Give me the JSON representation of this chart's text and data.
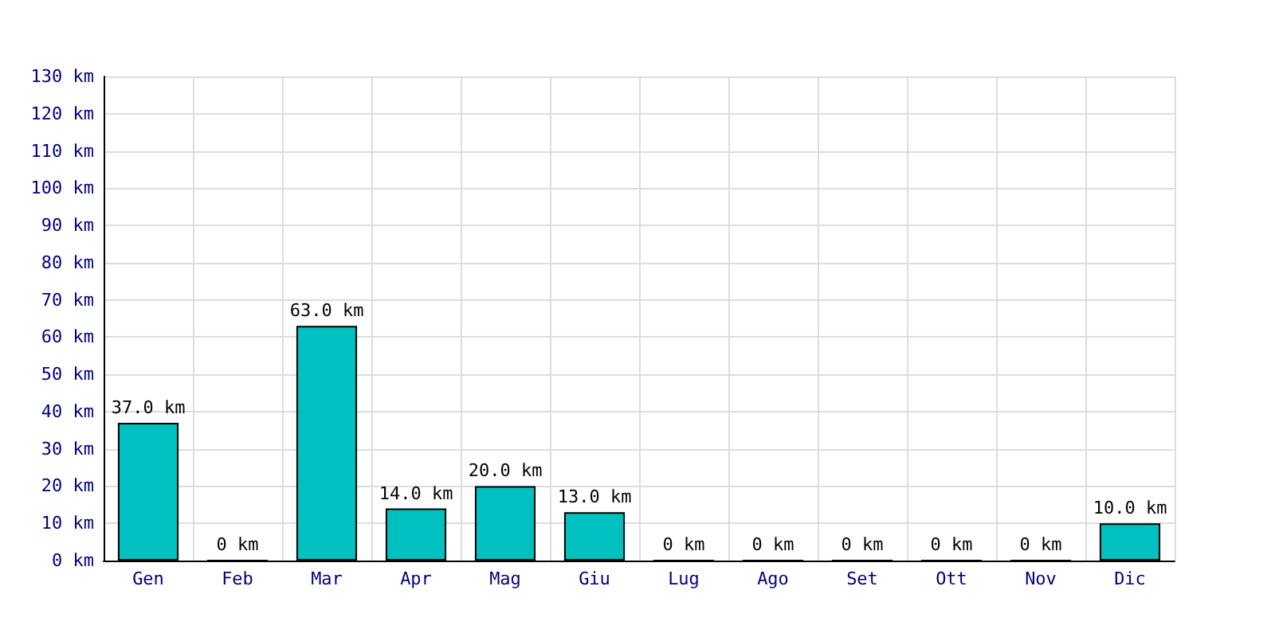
{
  "chart_data": {
    "type": "bar",
    "categories": [
      "Gen",
      "Feb",
      "Mar",
      "Apr",
      "Mag",
      "Giu",
      "Lug",
      "Ago",
      "Set",
      "Ott",
      "Nov",
      "Dic"
    ],
    "values": [
      37,
      0,
      63,
      14,
      20,
      13,
      0,
      0,
      0,
      0,
      0,
      10
    ],
    "value_labels": [
      "37.0 km",
      "0 km",
      "63.0 km",
      "14.0 km",
      "20.0 km",
      "13.0 km",
      "0 km",
      "0 km",
      "0 km",
      "0 km",
      "0 km",
      "10.0 km"
    ],
    "color": "#00c0c0",
    "ylim": [
      0,
      130
    ],
    "yticks": [
      {
        "value": 0,
        "label": "0 km"
      },
      {
        "value": 10,
        "label": "10 km"
      },
      {
        "value": 20,
        "label": "20 km"
      },
      {
        "value": 30,
        "label": "30 km"
      },
      {
        "value": 40,
        "label": "40 km"
      },
      {
        "value": 50,
        "label": "50 km"
      },
      {
        "value": 60,
        "label": "60 km"
      },
      {
        "value": 70,
        "label": "70 km"
      },
      {
        "value": 80,
        "label": "80 km"
      },
      {
        "value": 90,
        "label": "90 km"
      },
      {
        "value": 100,
        "label": "100 km"
      },
      {
        "value": 110,
        "label": "110 km"
      },
      {
        "value": 120,
        "label": "120 km"
      },
      {
        "value": 130,
        "label": "130 km"
      }
    ],
    "grid": true
  }
}
